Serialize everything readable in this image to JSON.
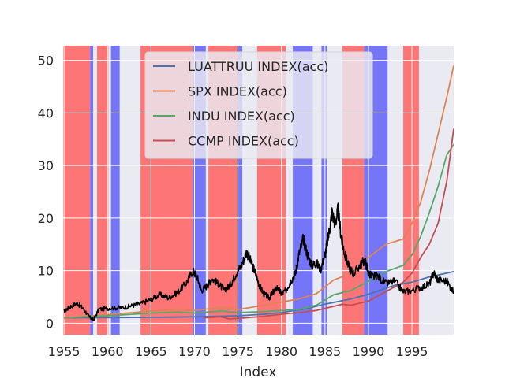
{
  "chart_data": {
    "type": "line",
    "title": "",
    "xlabel": "Index",
    "ylabel": "",
    "xlim": [
      1954.9,
      1999.8
    ],
    "ylim": [
      -2.2,
      52.8
    ],
    "x_ticks": [
      1955,
      1960,
      1965,
      1970,
      1975,
      1980,
      1985,
      1990,
      1995
    ],
    "x_tick_labels": [
      "1955",
      "1960",
      "1965",
      "1970",
      "1975",
      "1980",
      "1985",
      "1990",
      "1995"
    ],
    "y_ticks": [
      0,
      10,
      20,
      30,
      40,
      50
    ],
    "y_tick_labels": [
      "0",
      "10",
      "20",
      "30",
      "40",
      "50"
    ],
    "grid": true,
    "legend": "top-center",
    "regime_bands": [
      {
        "start": 1954.9,
        "end": 1958.0,
        "color": "red"
      },
      {
        "start": 1958.0,
        "end": 1958.35,
        "color": "blue"
      },
      {
        "start": 1958.8,
        "end": 1960.1,
        "color": "red"
      },
      {
        "start": 1960.4,
        "end": 1961.4,
        "color": "blue"
      },
      {
        "start": 1963.8,
        "end": 1969.8,
        "color": "red"
      },
      {
        "start": 1969.8,
        "end": 1971.3,
        "color": "blue"
      },
      {
        "start": 1971.6,
        "end": 1974.9,
        "color": "red"
      },
      {
        "start": 1974.9,
        "end": 1975.5,
        "color": "blue"
      },
      {
        "start": 1977.2,
        "end": 1980.5,
        "color": "red"
      },
      {
        "start": 1981.3,
        "end": 1983.6,
        "color": "blue"
      },
      {
        "start": 1984.6,
        "end": 1985.2,
        "color": "blue"
      },
      {
        "start": 1987.0,
        "end": 1989.5,
        "color": "red"
      },
      {
        "start": 1989.5,
        "end": 1992.2,
        "color": "blue"
      },
      {
        "start": 1994.0,
        "end": 1995.8,
        "color": "red"
      }
    ],
    "series": [
      {
        "name": "LUATTRUU INDEX(acc)",
        "color": "#4c72b0",
        "x": [
          1955,
          1960,
          1965,
          1970,
          1975,
          1978,
          1980,
          1983,
          1985,
          1988,
          1990,
          1993,
          1995,
          1997,
          1999.8
        ],
        "y": [
          1.0,
          1.05,
          1.1,
          1.2,
          1.4,
          1.7,
          2.0,
          2.8,
          3.6,
          4.6,
          5.5,
          7.2,
          7.8,
          8.8,
          9.8
        ]
      },
      {
        "name": "SPX INDEX(acc)",
        "color": "#dd8452",
        "x": [
          1955,
          1960,
          1965,
          1968,
          1970,
          1973,
          1975,
          1978,
          1980,
          1982,
          1984,
          1986,
          1988,
          1990,
          1992,
          1994,
          1995,
          1996,
          1997,
          1998,
          1999,
          1999.8
        ],
        "y": [
          1.0,
          1.6,
          2.3,
          2.6,
          2.4,
          3.0,
          2.6,
          3.4,
          4.0,
          4.6,
          5.6,
          8.2,
          9.5,
          12.5,
          15.0,
          16.0,
          19.0,
          23.0,
          29.0,
          36.0,
          43.0,
          49.0
        ]
      },
      {
        "name": "INDU INDEX(acc)",
        "color": "#55a868",
        "x": [
          1955,
          1960,
          1965,
          1968,
          1970,
          1973,
          1975,
          1978,
          1980,
          1982,
          1984,
          1986,
          1988,
          1990,
          1992,
          1994,
          1995,
          1996,
          1997,
          1998,
          1999,
          1999.8
        ],
        "y": [
          1.0,
          1.4,
          1.9,
          2.1,
          1.9,
          2.3,
          2.0,
          2.2,
          2.4,
          2.6,
          3.4,
          5.4,
          6.2,
          8.0,
          9.8,
          11.0,
          13.0,
          16.5,
          21.0,
          26.0,
          32.0,
          34.0
        ]
      },
      {
        "name": "CCMP INDEX(acc)",
        "color": "#c44e52",
        "x": [
          1971,
          1973,
          1974,
          1975,
          1978,
          1980,
          1982,
          1984,
          1986,
          1987,
          1988,
          1990,
          1992,
          1994,
          1995,
          1996,
          1997,
          1998,
          1999,
          1999.8
        ],
        "y": [
          1.0,
          1.2,
          0.8,
          0.9,
          1.3,
          1.7,
          2.0,
          2.4,
          3.2,
          3.6,
          3.4,
          4.2,
          6.0,
          7.8,
          9.5,
          12.5,
          15.0,
          19.0,
          27.0,
          37.0
        ]
      },
      {
        "name": "",
        "color": "#000000",
        "x": [
          1955,
          1955.6,
          1956.5,
          1957.2,
          1957.9,
          1958.4,
          1959.0,
          1960.0,
          1961.0,
          1962.0,
          1963.0,
          1964.0,
          1965.0,
          1966.0,
          1967.0,
          1968.0,
          1969.0,
          1969.8,
          1970.3,
          1970.8,
          1971.5,
          1972.0,
          1972.8,
          1973.5,
          1974.2,
          1974.8,
          1975.4,
          1976.0,
          1976.6,
          1977.0,
          1977.5,
          1978.0,
          1978.6,
          1979.0,
          1979.5,
          1980.0,
          1980.5,
          1981.0,
          1981.6,
          1982.0,
          1982.5,
          1983.0,
          1983.5,
          1984.0,
          1984.5,
          1985.0,
          1985.4,
          1985.8,
          1986.2,
          1986.5,
          1986.9,
          1987.3,
          1987.8,
          1988.3,
          1989.0,
          1989.6,
          1990.0,
          1990.5,
          1991.0,
          1992.0,
          1993.0,
          1994.0,
          1995.0,
          1996.0,
          1997.0,
          1997.5,
          1998.0,
          1999.0,
          1999.8
        ],
        "y": [
          2.2,
          3.0,
          3.8,
          2.8,
          1.2,
          0.6,
          2.6,
          2.8,
          2.9,
          3.0,
          3.4,
          3.8,
          4.5,
          5.4,
          4.8,
          5.8,
          7.5,
          10.0,
          8.8,
          6.2,
          7.2,
          8.5,
          7.4,
          6.2,
          7.5,
          9.5,
          11.0,
          13.6,
          11.2,
          9.5,
          7.0,
          5.5,
          4.8,
          5.8,
          6.8,
          5.6,
          6.2,
          7.8,
          9.4,
          13.0,
          16.0,
          13.0,
          11.0,
          11.5,
          10.2,
          13.0,
          16.5,
          21.0,
          19.0,
          21.5,
          16.0,
          13.0,
          10.5,
          9.4,
          11.0,
          12.0,
          9.5,
          8.8,
          9.0,
          7.5,
          8.0,
          6.0,
          6.2,
          6.8,
          7.4,
          9.6,
          8.2,
          8.0,
          5.8
        ]
      }
    ]
  }
}
